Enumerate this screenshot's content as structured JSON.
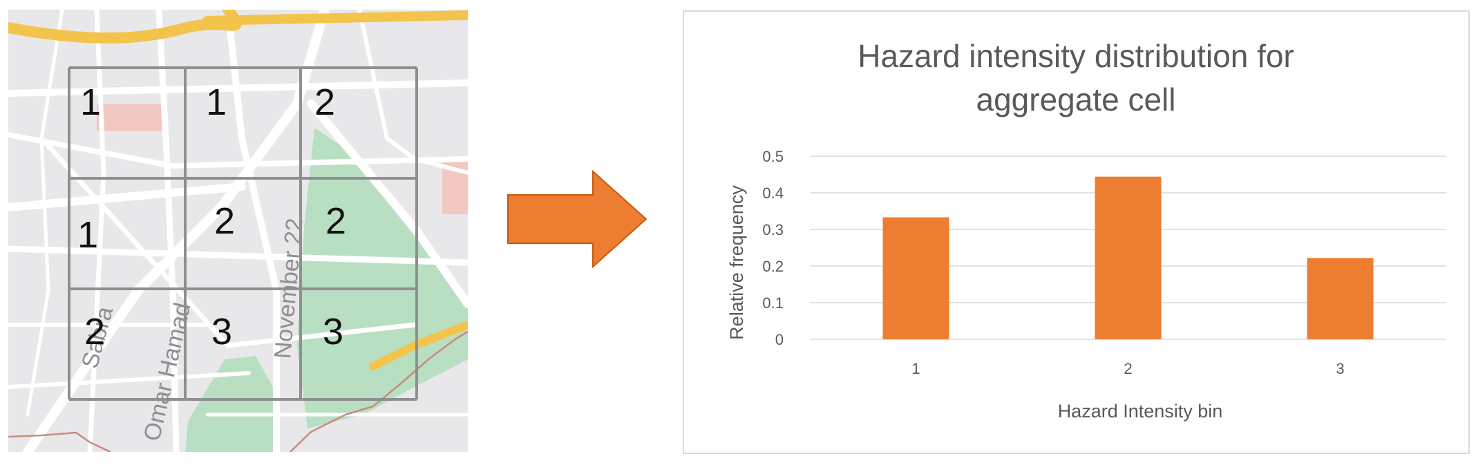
{
  "map": {
    "street_labels": [
      "Sabra",
      "Omar Hamad",
      "November 22"
    ],
    "cells": [
      [
        1,
        1,
        2
      ],
      [
        1,
        2,
        2
      ],
      [
        2,
        3,
        3
      ]
    ],
    "colors": {
      "land": "#e8e8ea",
      "road": "#ffffff",
      "highway": "#f3c44b",
      "park": "#b9dfc2",
      "grid": "#8f8f8f",
      "boundary": "#c98a7d"
    }
  },
  "arrow": {
    "color": "#ed7d31",
    "outline": "#c55a11"
  },
  "chart_data": {
    "type": "bar",
    "title": "Hazard intensity distribution for aggregate cell",
    "title_lines": [
      "Hazard intensity distribution for",
      "aggregate cell"
    ],
    "categories": [
      "1",
      "2",
      "3"
    ],
    "values": [
      0.333,
      0.444,
      0.222
    ],
    "xlabel": "Hazard Intensity bin",
    "ylabel": "Relative frequency",
    "ylim": [
      0,
      0.5
    ],
    "yticks": [
      0,
      0.1,
      0.2,
      0.3,
      0.4,
      0.5
    ],
    "ytick_labels": [
      "0",
      "0.1",
      "0.2",
      "0.3",
      "0.4",
      "0.5"
    ],
    "grid": true,
    "bar_color": "#ed7d31",
    "legend": "none"
  }
}
